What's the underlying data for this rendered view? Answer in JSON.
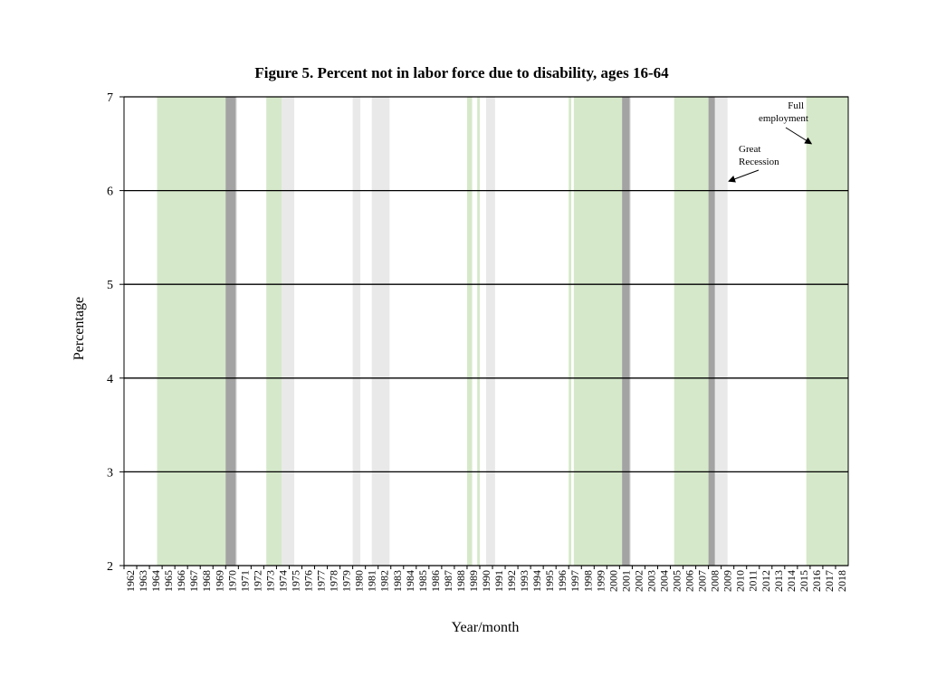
{
  "chart_data": {
    "type": "bar",
    "title": "Figure 5. Percent not in labor force due to disability, ages 16-64",
    "xlabel": "Year/month",
    "ylabel": "Percentage",
    "ylim": [
      2,
      7
    ],
    "yticks": [
      2,
      3,
      4,
      5,
      6,
      7
    ],
    "grid": true,
    "xlim": [
      1962,
      2019
    ],
    "xtick_labels": [
      "1962",
      "1963",
      "1964",
      "1965",
      "1966",
      "1967",
      "1968",
      "1969",
      "1970",
      "1971",
      "1972",
      "1973",
      "1974",
      "1975",
      "1976",
      "1977",
      "1978",
      "1979",
      "1980",
      "1981",
      "1982",
      "1983",
      "1984",
      "1985",
      "1986",
      "1987",
      "1988",
      "1989",
      "1990",
      "1991",
      "1992",
      "1993",
      "1994",
      "1995",
      "1996",
      "1997",
      "1998",
      "1999",
      "2000",
      "2001",
      "2002",
      "2003",
      "2004",
      "2005",
      "2006",
      "2007",
      "2008",
      "2009",
      "2010",
      "2011",
      "2012",
      "2013",
      "2014",
      "2015",
      "2016",
      "2017",
      "2018"
    ],
    "full_employment_periods": [
      {
        "start": 1964.6,
        "end": 1970.2
      },
      {
        "start": 1973.2,
        "end": 1974.4
      },
      {
        "start": 1989.0,
        "end": 1989.4
      },
      {
        "start": 1989.8,
        "end": 1990.0
      },
      {
        "start": 1997.0,
        "end": 1997.2
      },
      {
        "start": 1997.4,
        "end": 2001.2
      },
      {
        "start": 2005.3,
        "end": 2008.0
      },
      {
        "start": 2015.7,
        "end": 2019.0
      }
    ],
    "recession_periods": [
      {
        "start": 1970.0,
        "end": 1970.9
      },
      {
        "start": 1974.4,
        "end": 1975.4
      },
      {
        "start": 1980.0,
        "end": 1980.6
      },
      {
        "start": 1981.5,
        "end": 1982.9
      },
      {
        "start": 1990.5,
        "end": 1991.2
      },
      {
        "start": 2001.2,
        "end": 2001.9
      },
      {
        "start": 2008.0,
        "end": 2009.5
      }
    ],
    "overlap_periods": [
      {
        "start": 1970.0,
        "end": 1970.8
      },
      {
        "start": 2001.2,
        "end": 2001.8
      },
      {
        "start": 2008.0,
        "end": 2008.5
      }
    ],
    "annotations": [
      {
        "text": [
          "Full",
          "employment"
        ],
        "target_x": 2016.1,
        "target_y": 6.5
      },
      {
        "text": [
          "Great",
          "Recession"
        ],
        "target_x": 2009.6,
        "target_y": 6.1
      }
    ],
    "colors": {
      "full_employment": "#d5e8c9",
      "recession": "#e9e9e9",
      "overlap": "#a3a3a3",
      "grid": "#000000"
    }
  }
}
